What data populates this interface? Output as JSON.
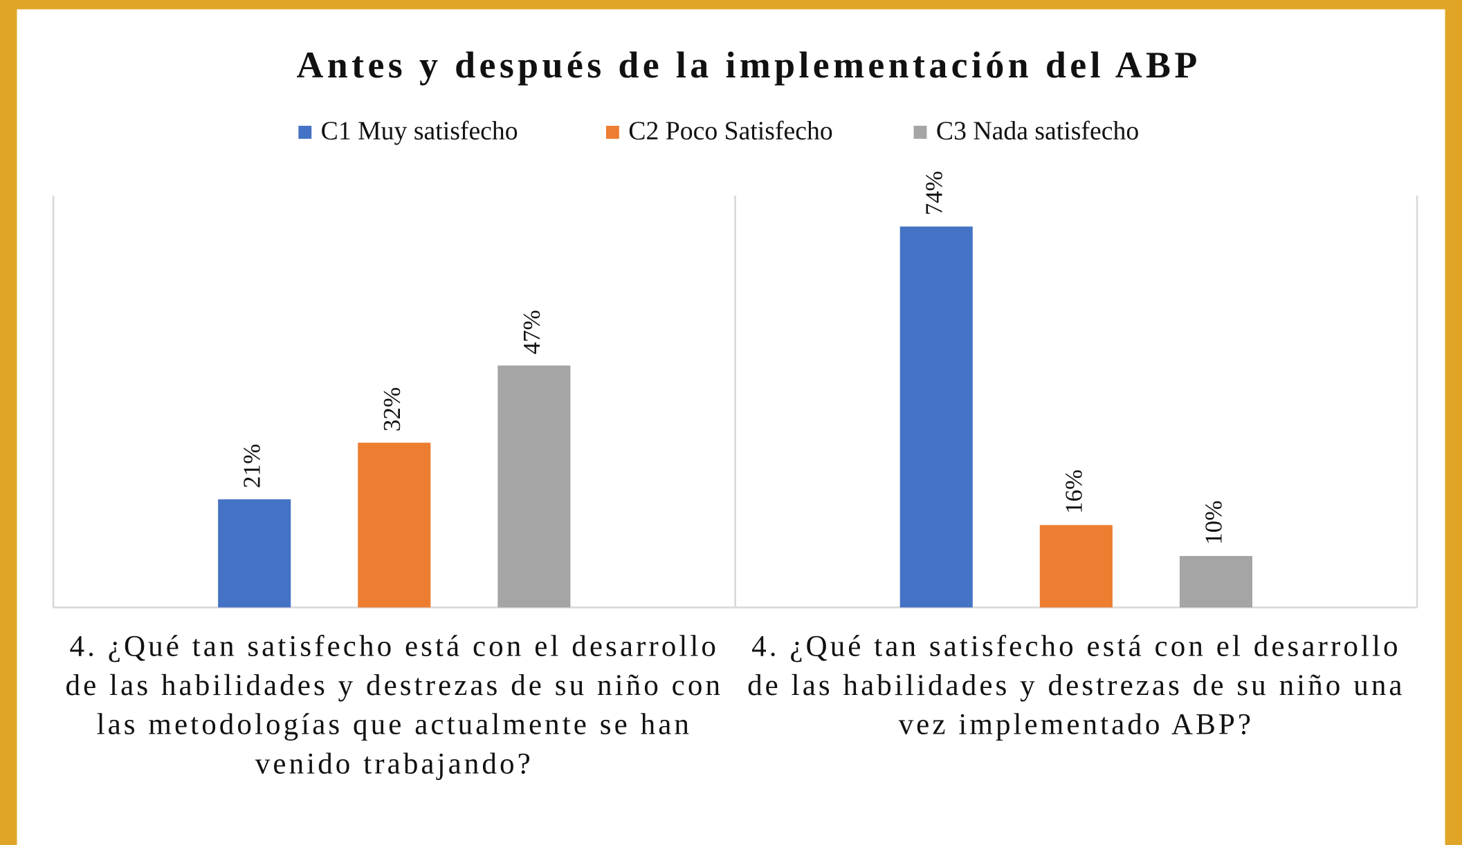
{
  "chart_data": {
    "type": "bar",
    "title": "Antes y después de la implementación del ABP",
    "categories": [
      "4. ¿Qué tan satisfecho está con el desarrollo de las habilidades y destrezas de su niño con las metodologías que actualmente se han venido trabajando?",
      "4. ¿Qué tan satisfecho está con el desarrollo de las habilidades y destrezas de su niño una vez implementado ABP?"
    ],
    "series": [
      {
        "name": "C1  Muy satisfecho",
        "color": "#4472C4",
        "values": [
          21,
          74
        ],
        "value_labels": [
          "21%",
          "74%"
        ]
      },
      {
        "name": "C2 Poco Satisfecho",
        "color": "#ED7D31",
        "values": [
          32,
          16
        ],
        "value_labels": [
          "32%",
          "16%"
        ]
      },
      {
        "name": "C3 Nada satisfecho",
        "color": "#A5A5A5",
        "values": [
          47,
          10
        ],
        "value_labels": [
          "47%",
          "10%"
        ]
      }
    ],
    "ylim": [
      0,
      80
    ],
    "legend": "top"
  }
}
